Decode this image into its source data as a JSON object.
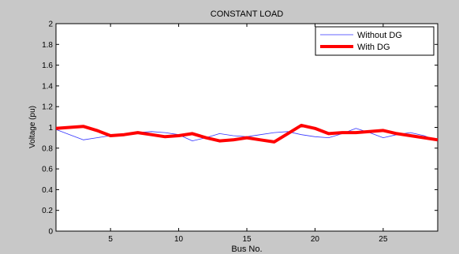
{
  "chart_data": {
    "type": "line",
    "title": "CONSTANT LOAD",
    "xlabel": "Bus No.",
    "ylabel": "Voltage (pu)",
    "xlim": [
      1,
      29
    ],
    "ylim": [
      0,
      2
    ],
    "xticks": [
      5,
      10,
      15,
      20,
      25
    ],
    "yticks": [
      0,
      0.2,
      0.4,
      0.6,
      0.8,
      1,
      1.2,
      1.4,
      1.6,
      1.8,
      2
    ],
    "grid": false,
    "legend_position": "top-right",
    "x": [
      1,
      2,
      3,
      4,
      5,
      6,
      7,
      8,
      9,
      10,
      11,
      12,
      13,
      14,
      15,
      16,
      17,
      18,
      19,
      20,
      21,
      22,
      23,
      24,
      25,
      26,
      27,
      28,
      29
    ],
    "series": [
      {
        "name": "Without DG",
        "color": "#3333ff",
        "values": [
          0.98,
          0.93,
          0.88,
          0.9,
          0.92,
          0.93,
          0.95,
          0.96,
          0.95,
          0.93,
          0.87,
          0.9,
          0.94,
          0.92,
          0.91,
          0.93,
          0.95,
          0.96,
          0.93,
          0.91,
          0.9,
          0.94,
          0.99,
          0.95,
          0.9,
          0.93,
          0.95,
          0.92,
          0.87
        ]
      },
      {
        "name": "With DG",
        "color": "#ff0000",
        "values": [
          0.99,
          1.0,
          1.01,
          0.97,
          0.92,
          0.93,
          0.95,
          0.93,
          0.91,
          0.92,
          0.94,
          0.9,
          0.87,
          0.88,
          0.9,
          0.88,
          0.86,
          0.94,
          1.02,
          0.99,
          0.94,
          0.95,
          0.95,
          0.96,
          0.97,
          0.94,
          0.92,
          0.9,
          0.88
        ]
      }
    ]
  }
}
